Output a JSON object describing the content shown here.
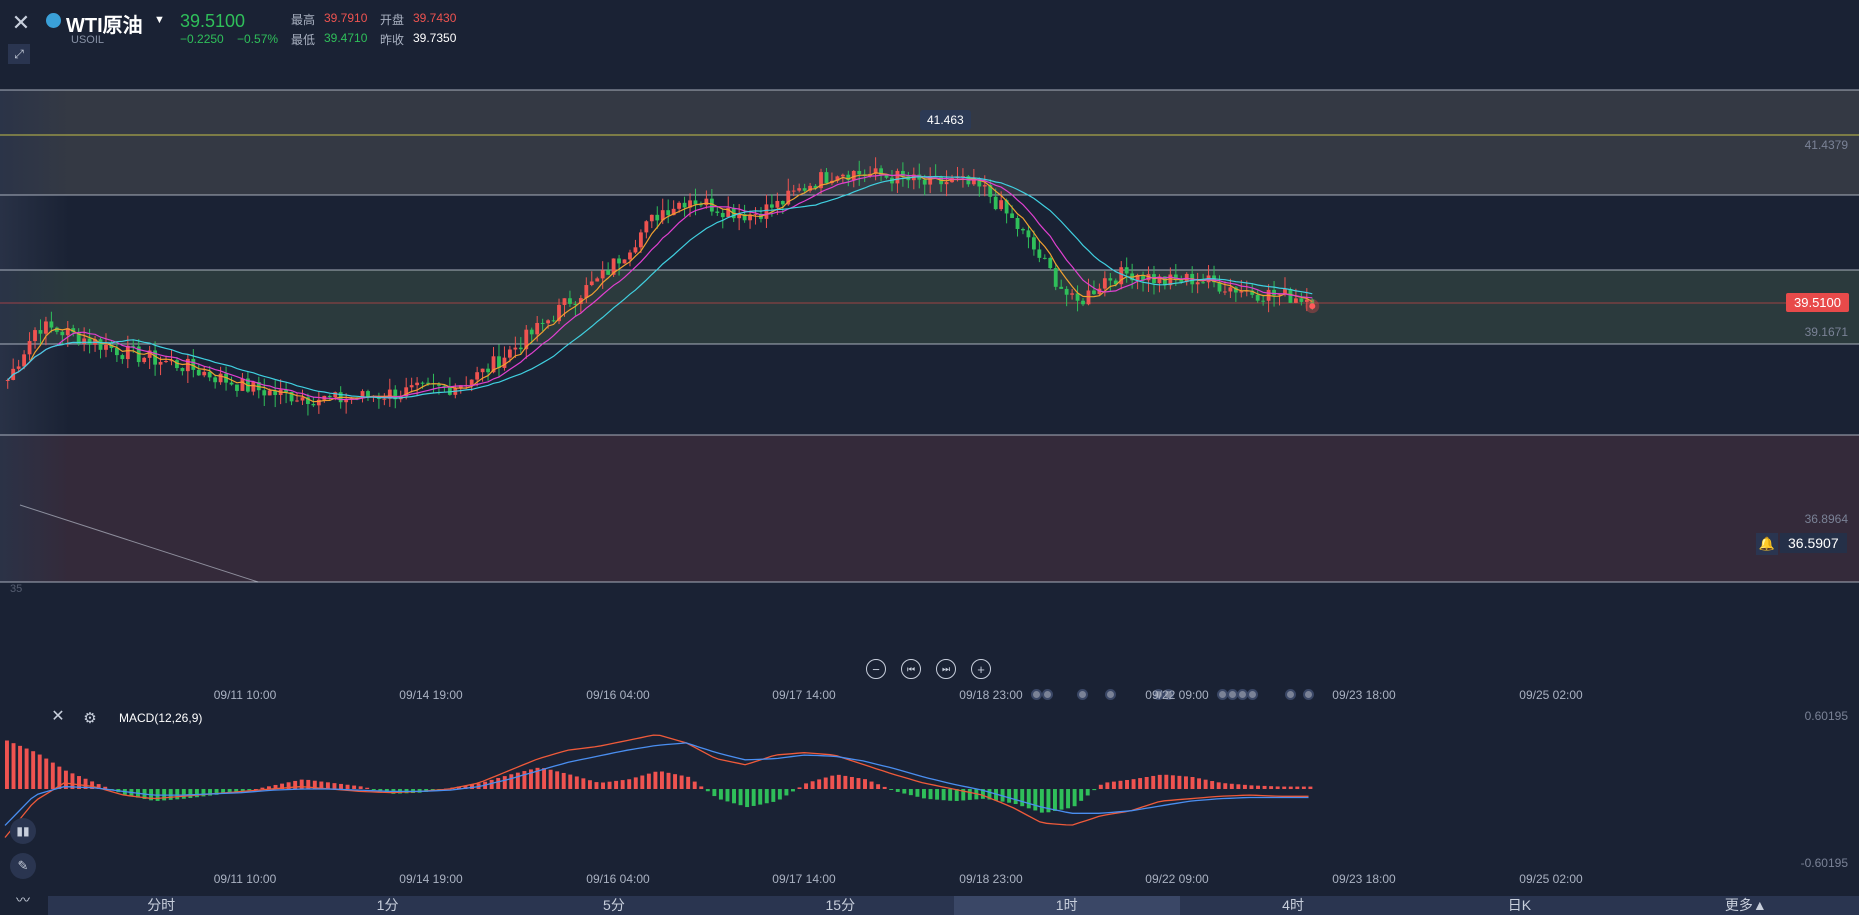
{
  "header": {
    "symbol_name": "WTI原油",
    "symbol_code": "USOIL",
    "last_price": "39.5100",
    "change": "−0.2250",
    "change_pct": "−0.57%",
    "high_label": "最高",
    "high_value": "39.7910",
    "open_label": "开盘",
    "open_value": "39.7430",
    "low_label": "最低",
    "low_value": "39.4710",
    "prev_close_label": "昨收",
    "prev_close_value": "39.7350"
  },
  "main_chart": {
    "high_tooltip": "41.463",
    "axis_labels": {
      "top_level": "41.4379",
      "mid_level": "39.1671",
      "low_level": "36.8964"
    },
    "current_price_tag": "39.5100",
    "alert_price": "36.5907",
    "left_edge_label": "35",
    "colors": {
      "up": "#ef5350",
      "down": "#2fbf5a",
      "ma5": "#f0a030",
      "ma10": "#e040d0",
      "ma20": "#40d0e0",
      "level_line": "#c8cfdc",
      "level_top": "#e8e04a"
    }
  },
  "chart_data": {
    "type": "candlestick",
    "x_ticks": [
      "09/11 10:00",
      "09/14 19:00",
      "09/16 04:00",
      "09/17 14:00",
      "09/18 23:00",
      "09/22 09:00",
      "09/23 18:00",
      "09/25 02:00"
    ],
    "ylim": [
      35.3,
      42.6
    ],
    "price_levels": [
      41.4379,
      39.1671,
      36.8964
    ],
    "closes": [
      38.3,
      39.1,
      39.0,
      38.85,
      38.7,
      38.6,
      38.5,
      38.35,
      38.2,
      38.1,
      38.05,
      38.0,
      38.05,
      38.1,
      38.15,
      38.2,
      38.4,
      38.75,
      39.1,
      39.5,
      39.8,
      40.3,
      40.8,
      41.0,
      40.85,
      40.75,
      40.9,
      41.2,
      41.4,
      41.35,
      41.3,
      41.2,
      41.25,
      41.1,
      40.6,
      40.0,
      39.4,
      39.8,
      39.9,
      39.75,
      39.8,
      39.7,
      39.6,
      39.55,
      39.51
    ],
    "macd": {
      "label": "MACD(12,26,9)",
      "ylim_labels": [
        "0.60195",
        "-0.60195"
      ],
      "ylim": [
        -0.60195,
        0.60195
      ],
      "histogram": [
        0.4,
        0.3,
        0.15,
        0.05,
        -0.05,
        -0.1,
        -0.08,
        -0.05,
        -0.02,
        0.03,
        0.08,
        0.05,
        0.02,
        -0.04,
        -0.03,
        0.01,
        0.05,
        0.12,
        0.18,
        0.12,
        0.05,
        0.08,
        0.15,
        0.1,
        -0.08,
        -0.15,
        -0.1,
        0.05,
        0.12,
        0.08,
        -0.02,
        -0.08,
        -0.1,
        -0.08,
        -0.12,
        -0.2,
        -0.15,
        0.05,
        0.08,
        0.12,
        0.1,
        0.05,
        0.03,
        0.02,
        0.02
      ],
      "dif": [
        -0.4,
        -0.1,
        0.05,
        0.02,
        -0.05,
        -0.08,
        -0.06,
        -0.04,
        -0.02,
        0.0,
        0.02,
        0.0,
        -0.02,
        -0.03,
        -0.02,
        0.0,
        0.05,
        0.15,
        0.25,
        0.32,
        0.35,
        0.4,
        0.45,
        0.38,
        0.25,
        0.2,
        0.28,
        0.3,
        0.28,
        0.2,
        0.12,
        0.05,
        0.0,
        -0.05,
        -0.15,
        -0.28,
        -0.3,
        -0.22,
        -0.18,
        -0.1,
        -0.08,
        -0.06,
        -0.05,
        -0.06,
        -0.06
      ],
      "dea": [
        -0.3,
        -0.05,
        0.02,
        0.01,
        -0.02,
        -0.05,
        -0.05,
        -0.04,
        -0.03,
        -0.01,
        0.0,
        0.0,
        -0.01,
        -0.02,
        -0.02,
        -0.01,
        0.02,
        0.08,
        0.15,
        0.22,
        0.27,
        0.32,
        0.36,
        0.38,
        0.3,
        0.24,
        0.25,
        0.28,
        0.27,
        0.23,
        0.17,
        0.1,
        0.04,
        -0.01,
        -0.08,
        -0.15,
        -0.2,
        -0.2,
        -0.18,
        -0.14,
        -0.1,
        -0.08,
        -0.07,
        -0.07,
        -0.07
      ]
    }
  },
  "timeframes": [
    "分时",
    "1分",
    "5分",
    "15分",
    "1时",
    "4时",
    "日K",
    "更多▲"
  ],
  "active_timeframe": "1时"
}
